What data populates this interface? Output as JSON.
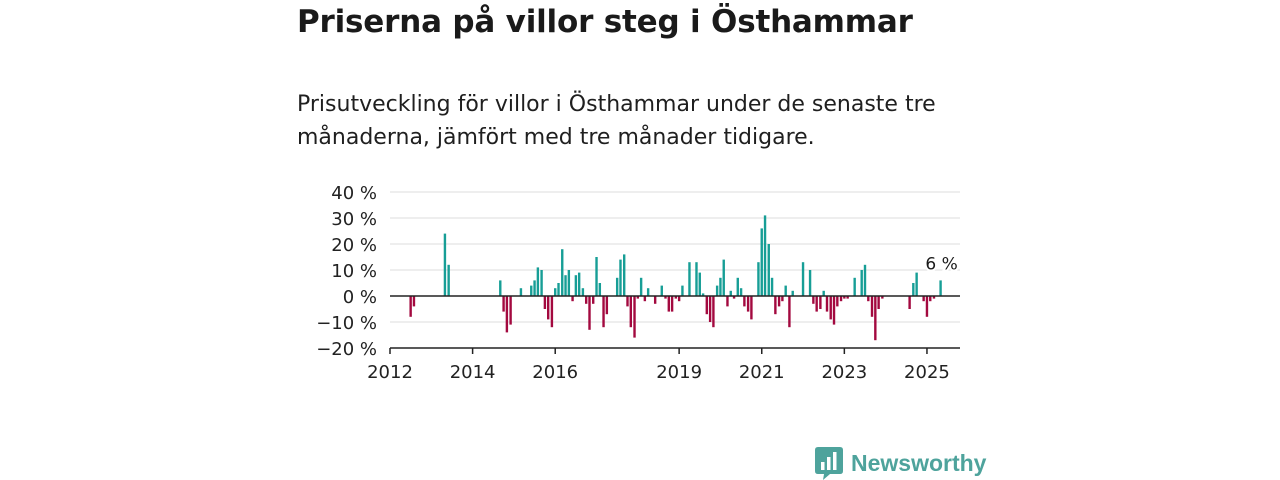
{
  "title": "Priserna på villor steg i Östhammar",
  "subtitle": "Prisutveckling för villor i Östhammar under de senaste tre månaderna, jämfört med tre månader tidigare.",
  "brand": {
    "name": "Newsworthy",
    "logo_icon": "bar-chart-speech-bubble-icon"
  },
  "colors": {
    "positive": "#179e96",
    "negative": "#a3093f",
    "grid": "#dddddd",
    "axis": "#222222",
    "brand": "#4ea39c"
  },
  "chart_data": {
    "type": "bar",
    "ylim": [
      -20,
      40
    ],
    "xlim": [
      2012.0,
      2025.8
    ],
    "y_ticks": [
      40,
      30,
      20,
      10,
      0,
      -10,
      -20
    ],
    "y_tick_labels": [
      "40 %",
      "30 %",
      "20 %",
      "10 %",
      "0 %",
      "−10 %",
      "−20 %"
    ],
    "x_ticks": [
      2012,
      2014,
      2016,
      2019,
      2021,
      2023,
      2025
    ],
    "x_tick_labels": [
      "2012",
      "2014",
      "2016",
      "2019",
      "2021",
      "2023",
      "2025"
    ],
    "grid": true,
    "annotation": {
      "text": "6 %",
      "x": 2025.33,
      "y": 6
    },
    "x": [
      2012.5,
      2012.58,
      2013.33,
      2013.42,
      2014.67,
      2014.75,
      2014.83,
      2014.92,
      2015.17,
      2015.42,
      2015.5,
      2015.58,
      2015.67,
      2015.75,
      2015.83,
      2015.92,
      2016.0,
      2016.08,
      2016.17,
      2016.25,
      2016.33,
      2016.42,
      2016.5,
      2016.58,
      2016.67,
      2016.75,
      2016.83,
      2016.92,
      2017.0,
      2017.08,
      2017.17,
      2017.25,
      2017.5,
      2017.58,
      2017.67,
      2017.75,
      2017.83,
      2017.92,
      2018.0,
      2018.08,
      2018.17,
      2018.25,
      2018.42,
      2018.58,
      2018.67,
      2018.75,
      2018.83,
      2018.92,
      2019.0,
      2019.08,
      2019.25,
      2019.42,
      2019.5,
      2019.58,
      2019.67,
      2019.75,
      2019.83,
      2019.92,
      2020.0,
      2020.08,
      2020.17,
      2020.25,
      2020.33,
      2020.42,
      2020.5,
      2020.58,
      2020.67,
      2020.75,
      2020.92,
      2021.0,
      2021.08,
      2021.17,
      2021.25,
      2021.33,
      2021.42,
      2021.5,
      2021.58,
      2021.67,
      2021.75,
      2021.83,
      2022.0,
      2022.17,
      2022.25,
      2022.33,
      2022.42,
      2022.5,
      2022.58,
      2022.67,
      2022.75,
      2022.83,
      2022.92,
      2023.0,
      2023.08,
      2023.25,
      2023.42,
      2023.5,
      2023.58,
      2023.67,
      2023.75,
      2023.83,
      2023.92,
      2024.58,
      2024.67,
      2024.75,
      2024.92,
      2025.0,
      2025.08,
      2025.17,
      2025.33
    ],
    "values": [
      -8,
      -4,
      24,
      12,
      6,
      -6,
      -14,
      -11,
      3,
      4,
      6,
      11,
      10,
      -5,
      -9,
      -12,
      3,
      5,
      18,
      8,
      10,
      -2,
      8,
      9,
      3,
      -3,
      -13,
      -3,
      15,
      5,
      -12,
      -7,
      7,
      14,
      16,
      -4,
      -12,
      -16,
      -1,
      7,
      -2,
      3,
      -3,
      4,
      -1,
      -6,
      -6,
      -1,
      -2,
      4,
      13,
      13,
      9,
      1,
      -7,
      -10,
      -12,
      4,
      7,
      14,
      -4,
      2,
      -1,
      7,
      3,
      -4,
      -6,
      -9,
      13,
      26,
      31,
      20,
      7,
      -7,
      -4,
      -2,
      4,
      -12,
      2,
      0,
      13,
      10,
      -3,
      -6,
      -5,
      2,
      -6,
      -9,
      -11,
      -4,
      -2,
      -1,
      -1,
      7,
      10,
      12,
      -2,
      -8,
      -17,
      -5,
      -1,
      -5,
      5,
      9,
      -2,
      -8,
      -2,
      -1,
      6
    ]
  }
}
